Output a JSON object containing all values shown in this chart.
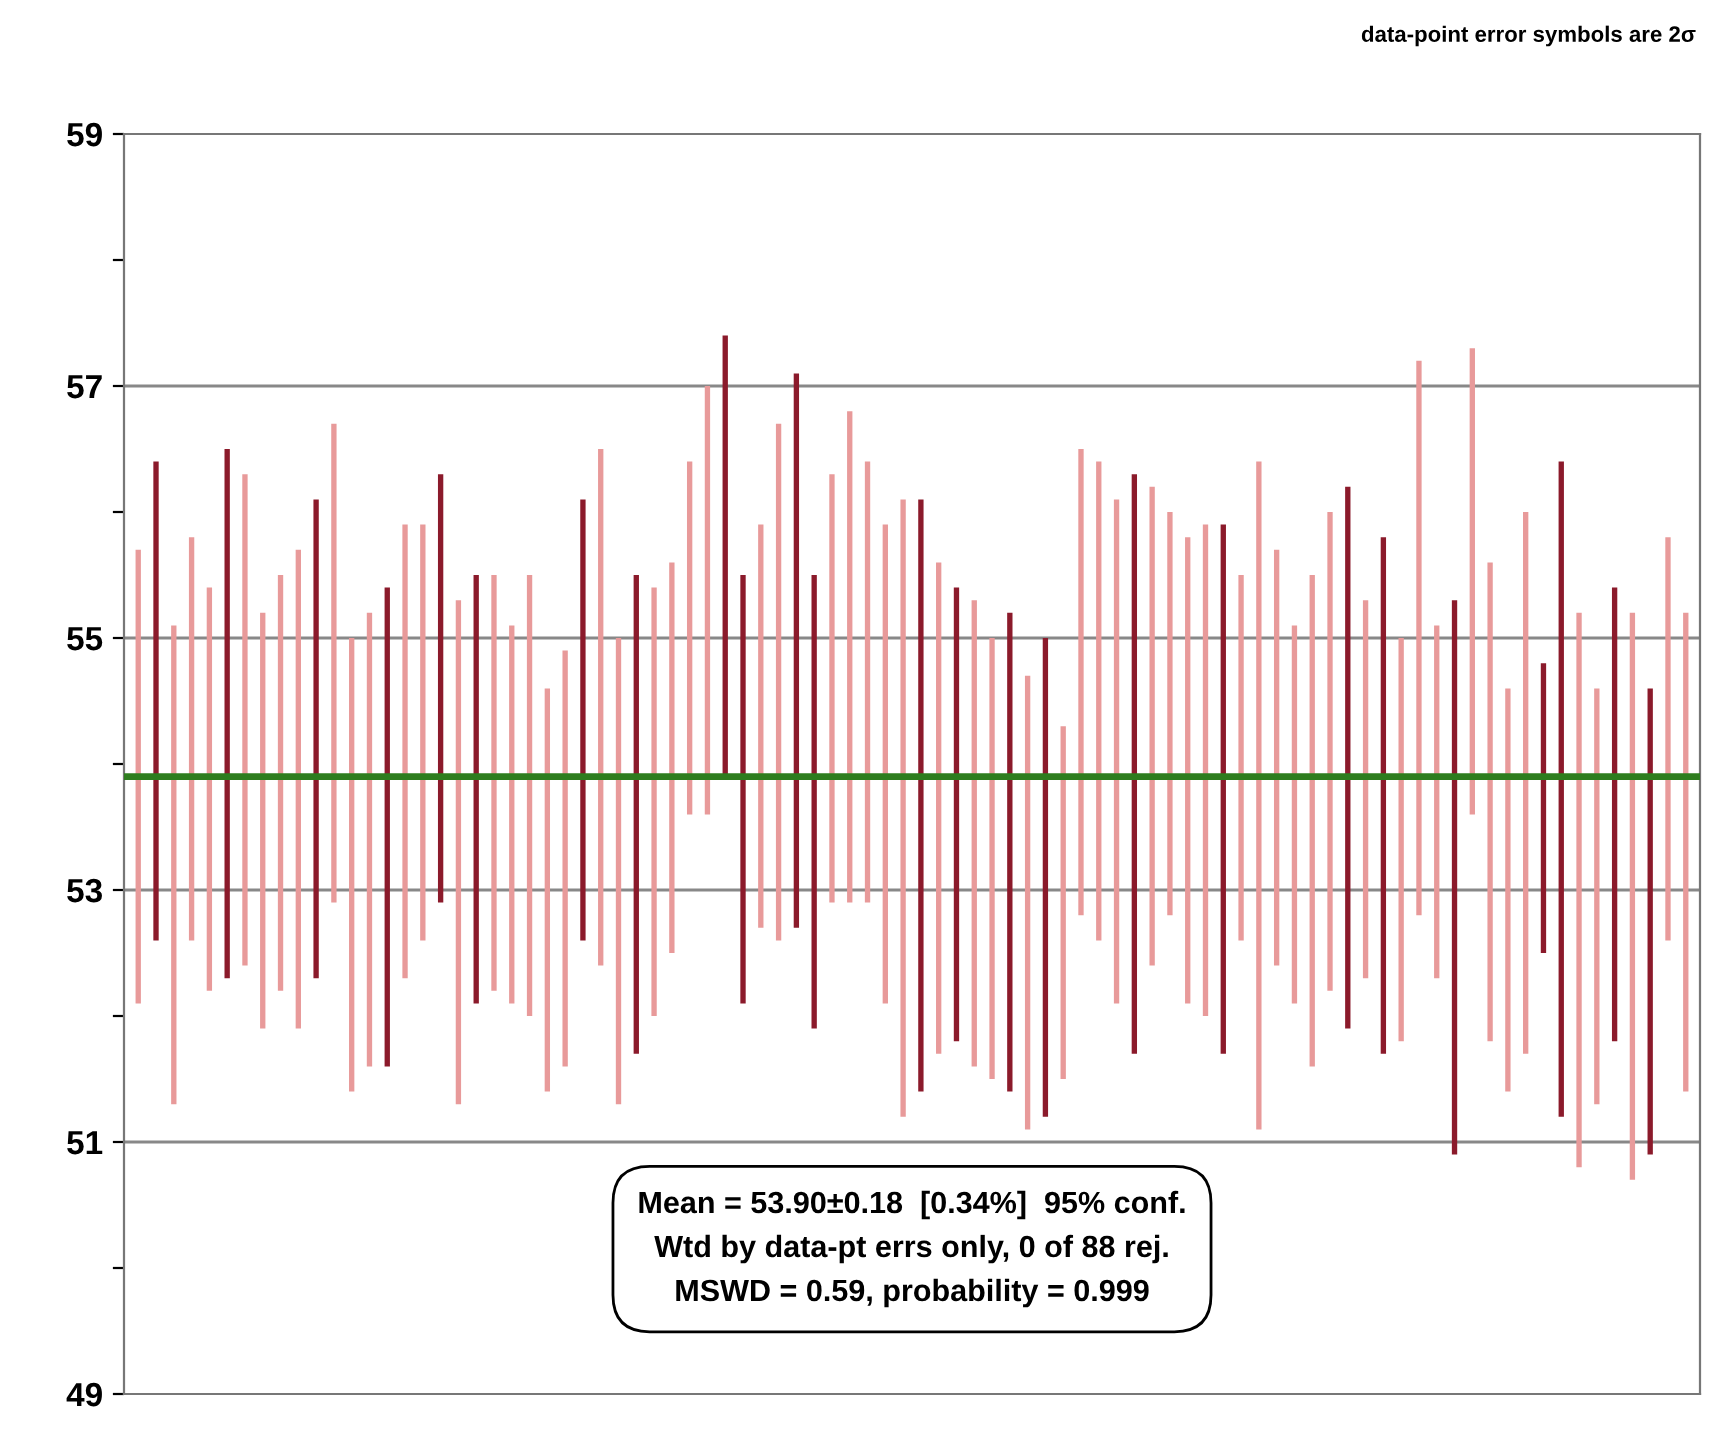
{
  "chart_data": {
    "type": "bar",
    "tick_labels": "y",
    "grid": "y",
    "categories": [
      null,
      null,
      null,
      null,
      null,
      null,
      null,
      null,
      null,
      null,
      null,
      null,
      null,
      null,
      null,
      null,
      null,
      null,
      null,
      null,
      null,
      null,
      null,
      null,
      null,
      null,
      null,
      null,
      null,
      null,
      null,
      null,
      null,
      null,
      null,
      null,
      null,
      null,
      null,
      null,
      null,
      null,
      null,
      null,
      null,
      null,
      null,
      null,
      null,
      null,
      null,
      null,
      null,
      null,
      null,
      null,
      null,
      null,
      null,
      null,
      null,
      null,
      null,
      null,
      null,
      null,
      null,
      null,
      null,
      null,
      null,
      null,
      null,
      null,
      null,
      null,
      null,
      null,
      null,
      null,
      null,
      null,
      null,
      null,
      null,
      null,
      null,
      null
    ],
    "base": [
      52.1,
      52.6,
      51.3,
      52.6,
      52.2,
      52.3,
      52.4,
      51.9,
      52.2,
      51.9,
      52.3,
      52.9,
      51.4,
      51.6,
      51.6,
      52.3,
      52.6,
      52.9,
      51.3,
      52.1,
      52.2,
      52.1,
      52.0,
      51.4,
      51.6,
      52.6,
      52.4,
      51.3,
      51.7,
      52.0,
      52.5,
      53.6,
      53.6,
      53.9,
      52.1,
      52.7,
      52.6,
      52.7,
      51.9,
      52.9,
      52.9,
      52.9,
      52.1,
      51.2,
      51.4,
      51.7,
      51.8,
      51.6,
      51.5,
      51.4,
      51.1,
      51.2,
      51.5,
      52.8,
      52.6,
      52.1,
      51.7,
      52.4,
      52.8,
      52.1,
      52.0,
      51.7,
      52.6,
      51.1,
      52.4,
      52.1,
      51.6,
      52.2,
      51.9,
      52.3,
      51.7,
      51.8,
      52.8,
      52.3,
      50.9,
      53.6,
      51.8,
      51.4,
      51.7,
      52.5,
      51.2,
      50.8,
      51.3,
      51.8,
      50.7,
      50.9,
      52.6,
      51.4
    ],
    "values": [
      3.6,
      3.8,
      3.8,
      3.2,
      3.2,
      4.2,
      3.9,
      3.3,
      3.3,
      3.8,
      3.8,
      3.8,
      3.6,
      3.6,
      3.8,
      3.6,
      3.3,
      3.4,
      4.0,
      3.4,
      3.3,
      3.0,
      3.5,
      3.2,
      3.3,
      3.5,
      4.1,
      3.7,
      3.8,
      3.4,
      3.1,
      2.8,
      3.4,
      3.5,
      3.4,
      3.2,
      4.1,
      4.4,
      3.6,
      3.4,
      3.9,
      3.5,
      3.8,
      4.9,
      4.7,
      3.9,
      3.6,
      3.7,
      3.5,
      3.8,
      3.6,
      3.8,
      2.8,
      3.7,
      3.8,
      4.0,
      4.6,
      3.8,
      3.2,
      3.7,
      3.9,
      4.2,
      2.9,
      5.3,
      3.3,
      3.0,
      3.9,
      3.8,
      4.3,
      3.0,
      4.1,
      3.2,
      4.4,
      2.8,
      4.4,
      3.7,
      3.8,
      3.2,
      4.3,
      2.3,
      5.2,
      4.4,
      3.3,
      3.6,
      4.5,
      3.7,
      3.2,
      3.8
    ],
    "colors": [
      "#e89a9a",
      "#8b1a2b",
      "#e89a9a",
      "#e89a9a",
      "#e89a9a",
      "#8b1a2b",
      "#e89a9a",
      "#e89a9a",
      "#e89a9a",
      "#e89a9a",
      "#8b1a2b",
      "#e89a9a",
      "#e89a9a",
      "#e89a9a",
      "#8b1a2b",
      "#e89a9a",
      "#e89a9a",
      "#8b1a2b",
      "#e89a9a",
      "#8b1a2b",
      "#e89a9a",
      "#e89a9a",
      "#e89a9a",
      "#e89a9a",
      "#e89a9a",
      "#8b1a2b",
      "#e89a9a",
      "#e89a9a",
      "#8b1a2b",
      "#e89a9a",
      "#e89a9a",
      "#e89a9a",
      "#e89a9a",
      "#8b1a2b",
      "#8b1a2b",
      "#e89a9a",
      "#e89a9a",
      "#8b1a2b",
      "#8b1a2b",
      "#e89a9a",
      "#e89a9a",
      "#e89a9a",
      "#e89a9a",
      "#e89a9a",
      "#8b1a2b",
      "#e89a9a",
      "#8b1a2b",
      "#e89a9a",
      "#e89a9a",
      "#8b1a2b",
      "#e89a9a",
      "#8b1a2b",
      "#e89a9a",
      "#e89a9a",
      "#e89a9a",
      "#e89a9a",
      "#8b1a2b",
      "#e89a9a",
      "#e89a9a",
      "#e89a9a",
      "#e89a9a",
      "#8b1a2b",
      "#e89a9a",
      "#e89a9a",
      "#e89a9a",
      "#e89a9a",
      "#e89a9a",
      "#e89a9a",
      "#8b1a2b",
      "#e89a9a",
      "#8b1a2b",
      "#e89a9a",
      "#e89a9a",
      "#e89a9a",
      "#8b1a2b",
      "#e89a9a",
      "#e89a9a",
      "#e89a9a",
      "#e89a9a",
      "#8b1a2b",
      "#8b1a2b",
      "#e89a9a",
      "#e89a9a",
      "#8b1a2b",
      "#e89a9a",
      "#8b1a2b",
      "#e89a9a",
      "#e89a9a"
    ],
    "ylim": [
      49,
      59
    ],
    "yticks": [
      49,
      {
        "value": 50,
        "label": null
      },
      51,
      {
        "value": 52,
        "label": null
      },
      53,
      {
        "value": 54,
        "label": null
      },
      55,
      {
        "value": 56,
        "label": null
      },
      57,
      {
        "value": 58,
        "label": null
      },
      59
    ],
    "ref_lines": [
      {
        "axis": "y",
        "value": 53.9,
        "color": "#2e7d1e"
      }
    ],
    "annotations": [
      "data-point error symbols are 2σ",
      "Mean = 53.90±0.18  [0.34%]  95% conf.\nWtd by data-pt errs only, 0 of 88 rej.\nMSWD = 0.59, probability = 0.999"
    ]
  }
}
